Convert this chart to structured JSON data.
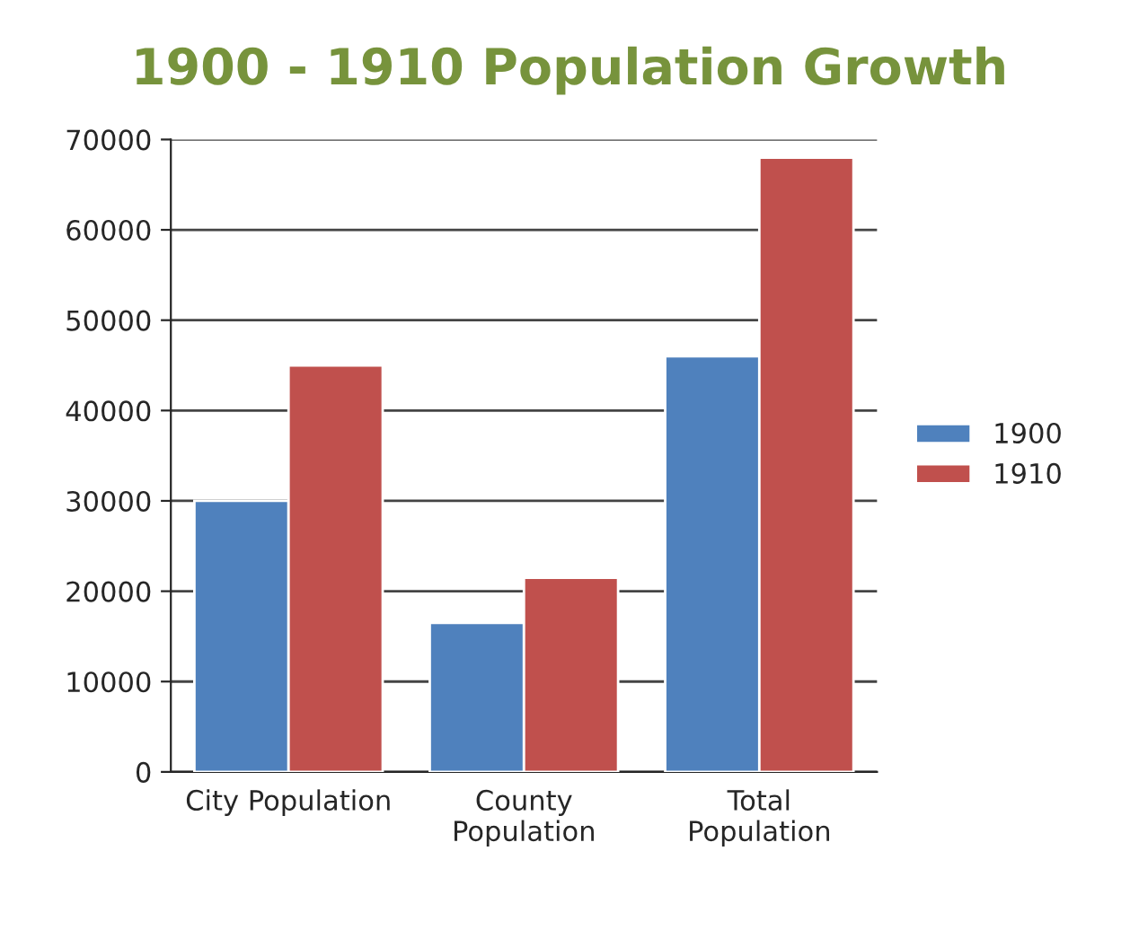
{
  "chart_data": {
    "type": "bar",
    "title": "1900 - 1910 Population Growth",
    "categories": [
      "City Population",
      "County\nPopulation",
      "Total\nPopulation"
    ],
    "series": [
      {
        "name": "1900",
        "color": "#4f81bd",
        "values": [
          30000,
          16500,
          46000
        ]
      },
      {
        "name": "1910",
        "color": "#c0504d",
        "values": [
          45000,
          21500,
          68000
        ]
      }
    ],
    "ylim": [
      0,
      70000
    ],
    "yticks": [
      0,
      10000,
      20000,
      30000,
      40000,
      50000,
      60000,
      70000
    ],
    "grid": "y",
    "legend": "right"
  }
}
